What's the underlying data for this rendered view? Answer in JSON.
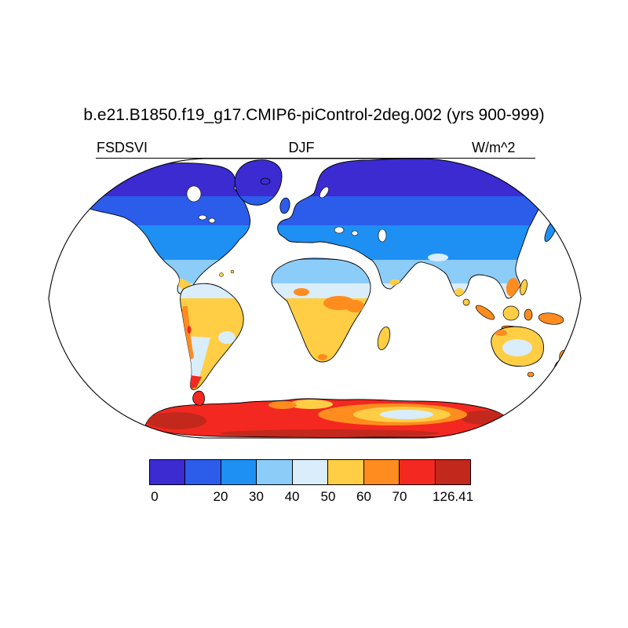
{
  "title": "b.e21.B1850.f19_g17.CMIP6-piControl-2deg.002 (yrs 900-999)",
  "labels": {
    "variable": "FSDSVI",
    "season": "DJF",
    "units": "W/m^2"
  },
  "chart_data": {
    "type": "heatmap",
    "title": "b.e21.B1850.f19_g17.CMIP6-piControl-2deg.002 (yrs 900-999)",
    "variable": "FSDSVI",
    "season": "DJF",
    "units": "W/m^2",
    "projection": "Robinson world map, land-only filled contours, ocean masked white, black coastlines",
    "contour_levels": [
      0,
      20,
      30,
      40,
      50,
      60,
      70
    ],
    "data_min": 0,
    "data_max": 126.41,
    "colorbar": {
      "ticks": [
        "0",
        "20",
        "30",
        "40",
        "50",
        "60",
        "70",
        "126.41"
      ],
      "colors": [
        "#3b2bd1",
        "#2c5cea",
        "#1e90f4",
        "#8cccf8",
        "#d9edfb",
        "#ffce44",
        "#ff8c1e",
        "#f32820",
        "#c3281d"
      ]
    },
    "pattern_by_region": [
      {
        "region": "Arctic and high-latitude NH land (N Canada, Greenland, N Siberia)",
        "value_wm2": "0-20"
      },
      {
        "region": "Mid-latitude NH land (Canada, N Europe, Russia)",
        "value_wm2": "20-30"
      },
      {
        "region": "Lower mid-latitude NH land (US, S Europe, C Asia, NE China, Japan)",
        "value_wm2": "30-40"
      },
      {
        "region": "Subtropical NH land (Sahara, Middle East, India, S China, N Mexico)",
        "value_wm2": "40-50"
      },
      {
        "region": "Tropical land (Amazon, central Africa, Central America, S India)",
        "value_wm2": "50-60"
      },
      {
        "region": "Andes, Horn of Africa, Indochina, maritime continent, New Guinea, N Australia rim, New Zealand",
        "value_wm2": "60-70"
      },
      {
        "region": "Interior Australia, Patagonia, SE Brazil",
        "value_wm2": "40-50"
      },
      {
        "region": "Antarctica coast and interior maximum",
        "value_wm2": "70-126.41"
      },
      {
        "region": "Central-east Antarctica dip",
        "value_wm2": "40-70"
      }
    ]
  }
}
